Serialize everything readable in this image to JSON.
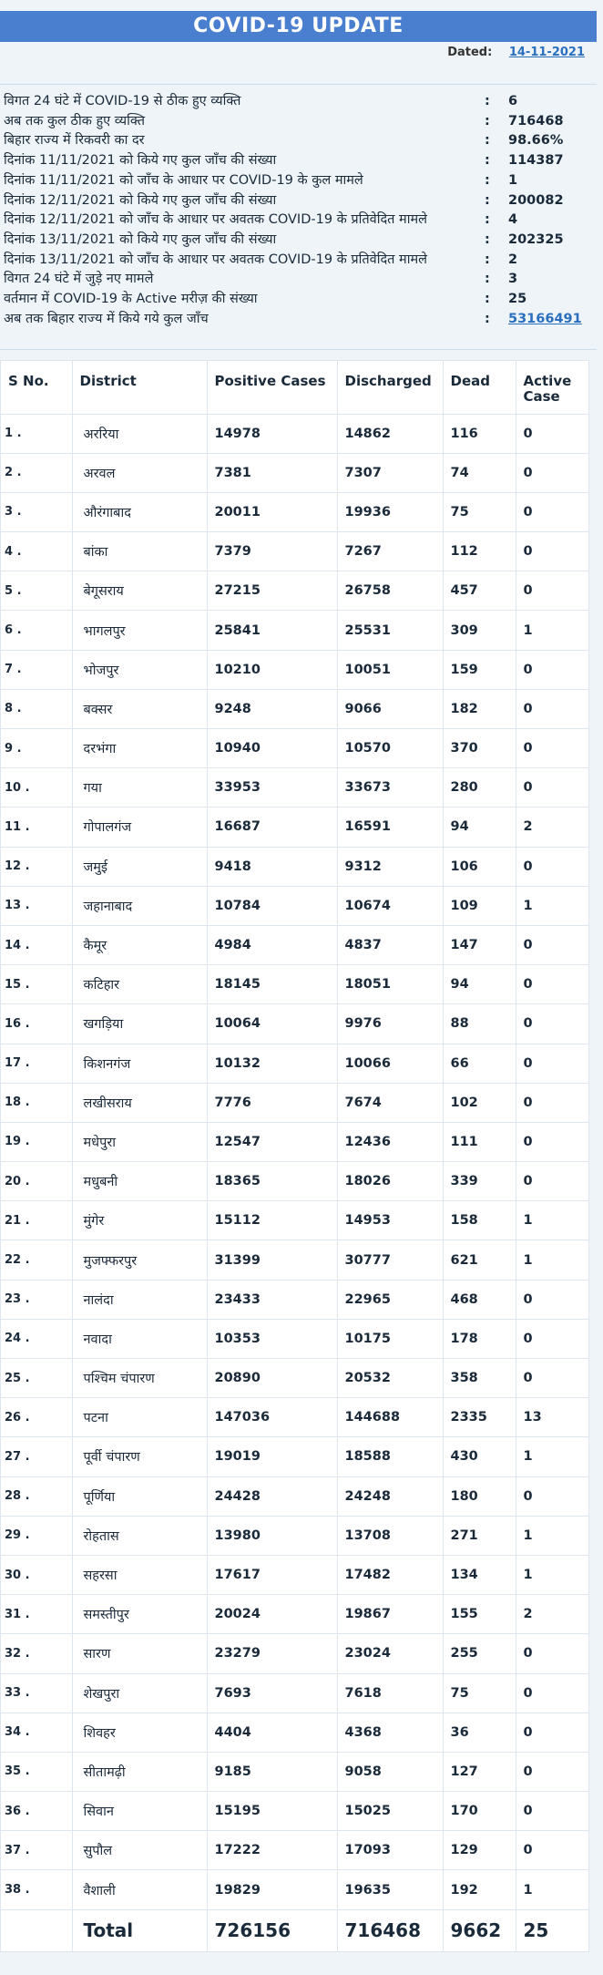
{
  "header": {
    "title": "COVID-19 UPDATE"
  },
  "dated": {
    "label": "Dated:",
    "value": "14-11-2021"
  },
  "summary": [
    {
      "label": "विगत 24 घंटे में COVID-19 से ठीक हुए व्यक्ति",
      "value": "6"
    },
    {
      "label": "अब तक कुल ठीक हुए व्यक्ति",
      "value": "716468"
    },
    {
      "label": "बिहार राज्य में रिकवरी का दर",
      "value": "98.66%"
    },
    {
      "label": "दिनांक 11/11/2021 को किये गए कुल जाँच की संख्या",
      "value": "114387"
    },
    {
      "label": "दिनांक 11/11/2021 को जाँच के आधार पर COVID-19 के कुल मामले",
      "value": "1"
    },
    {
      "label": "दिनांक 12/11/2021 को किये गए कुल जाँच की संख्या",
      "value": "200082"
    },
    {
      "label": "दिनांक 12/11/2021 को जाँच के आधार पर अवतक COVID-19 के प्रतिवेदित मामले",
      "value": "4"
    },
    {
      "label": "दिनांक 13/11/2021 को किये गए कुल जाँच की संख्या",
      "value": "202325"
    },
    {
      "label": "दिनांक 13/11/2021 को जाँच के आधार पर अवतक COVID-19 के प्रतिवेदित मामले",
      "value": "2"
    },
    {
      "label": "विगत 24 घंटे में जुड़े नए मामले",
      "value": "3"
    },
    {
      "label": "वर्तमान में COVID-19 के Active मरीज़ की संख्या",
      "value": "25"
    },
    {
      "label": "अब तक बिहार राज्य में किये गये कुल जाँच",
      "value": "53166491"
    }
  ],
  "table": {
    "headers": [
      "S No.",
      "District",
      "Positive Cases",
      "Discharged",
      "Dead",
      "Active Case"
    ],
    "rows": [
      [
        "1 .",
        "अररिया",
        "14978",
        "14862",
        "116",
        "0"
      ],
      [
        "2 .",
        "अरवल",
        "7381",
        "7307",
        "74",
        "0"
      ],
      [
        "3 .",
        "औरंगाबाद",
        "20011",
        "19936",
        "75",
        "0"
      ],
      [
        "4 .",
        "बांका",
        "7379",
        "7267",
        "112",
        "0"
      ],
      [
        "5 .",
        "बेगूसराय",
        "27215",
        "26758",
        "457",
        "0"
      ],
      [
        "6 .",
        "भागलपुर",
        "25841",
        "25531",
        "309",
        "1"
      ],
      [
        "7 .",
        "भोजपुर",
        "10210",
        "10051",
        "159",
        "0"
      ],
      [
        "8 .",
        "बक्सर",
        "9248",
        "9066",
        "182",
        "0"
      ],
      [
        "9 .",
        "दरभंगा",
        "10940",
        "10570",
        "370",
        "0"
      ],
      [
        "10 .",
        "गया",
        "33953",
        "33673",
        "280",
        "0"
      ],
      [
        "11 .",
        "गोपालगंज",
        "16687",
        "16591",
        "94",
        "2"
      ],
      [
        "12 .",
        "जमुई",
        "9418",
        "9312",
        "106",
        "0"
      ],
      [
        "13 .",
        "जहानाबाद",
        "10784",
        "10674",
        "109",
        "1"
      ],
      [
        "14 .",
        "कैमूर",
        "4984",
        "4837",
        "147",
        "0"
      ],
      [
        "15 .",
        "कटिहार",
        "18145",
        "18051",
        "94",
        "0"
      ],
      [
        "16 .",
        "खगड़िया",
        "10064",
        "9976",
        "88",
        "0"
      ],
      [
        "17 .",
        "किशनगंज",
        "10132",
        "10066",
        "66",
        "0"
      ],
      [
        "18 .",
        "लखीसराय",
        "7776",
        "7674",
        "102",
        "0"
      ],
      [
        "19 .",
        "मधेपुरा",
        "12547",
        "12436",
        "111",
        "0"
      ],
      [
        "20 .",
        "मधुबनी",
        "18365",
        "18026",
        "339",
        "0"
      ],
      [
        "21 .",
        "मुंगेर",
        "15112",
        "14953",
        "158",
        "1"
      ],
      [
        "22 .",
        "मुजफ्फरपुर",
        "31399",
        "30777",
        "621",
        "1"
      ],
      [
        "23 .",
        "नालंदा",
        "23433",
        "22965",
        "468",
        "0"
      ],
      [
        "24 .",
        "नवादा",
        "10353",
        "10175",
        "178",
        "0"
      ],
      [
        "25 .",
        "पश्चिम चंपारण",
        "20890",
        "20532",
        "358",
        "0"
      ],
      [
        "26 .",
        "पटना",
        "147036",
        "144688",
        "2335",
        "13"
      ],
      [
        "27 .",
        "पूर्वी चंपारण",
        "19019",
        "18588",
        "430",
        "1"
      ],
      [
        "28 .",
        "पूर्णिया",
        "24428",
        "24248",
        "180",
        "0"
      ],
      [
        "29 .",
        "रोहतास",
        "13980",
        "13708",
        "271",
        "1"
      ],
      [
        "30 .",
        "सहरसा",
        "17617",
        "17482",
        "134",
        "1"
      ],
      [
        "31 .",
        "समस्तीपुर",
        "20024",
        "19867",
        "155",
        "2"
      ],
      [
        "32 .",
        "सारण",
        "23279",
        "23024",
        "255",
        "0"
      ],
      [
        "33 .",
        "शेखपुरा",
        "7693",
        "7618",
        "75",
        "0"
      ],
      [
        "34 .",
        "शिवहर",
        "4404",
        "4368",
        "36",
        "0"
      ],
      [
        "35 .",
        "सीतामढ़ी",
        "9185",
        "9058",
        "127",
        "0"
      ],
      [
        "36 .",
        "सिवान",
        "15195",
        "15025",
        "170",
        "0"
      ],
      [
        "37 .",
        "सुपौल",
        "17222",
        "17093",
        "129",
        "0"
      ],
      [
        "38 .",
        "वैशाली",
        "19829",
        "19635",
        "192",
        "1"
      ]
    ],
    "total": [
      "",
      "Total",
      "726156",
      "716468",
      "9662",
      "25"
    ]
  }
}
